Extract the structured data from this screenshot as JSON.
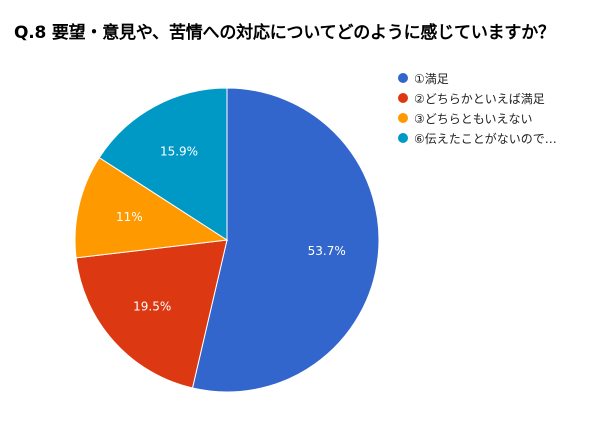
{
  "chart_data": {
    "type": "pie",
    "title": "Q.8 要望・意見や、苦情への対応についてどのように感じていますか？",
    "slices": [
      {
        "label": "①満足",
        "value": 53.7,
        "display": "53.7%",
        "color": "#3366cc"
      },
      {
        "label": "②どちらかといえば満足",
        "value": 19.5,
        "display": "19.5%",
        "color": "#dc3912"
      },
      {
        "label": "③どちらともいえない",
        "value": 11,
        "display": "11%",
        "color": "#ff9900"
      },
      {
        "label": "⑥伝えたことがないので…",
        "value": 15.9,
        "display": "15.9%",
        "color": "#0099c6"
      }
    ],
    "legend_position": "right",
    "start": "12 o'clock",
    "direction": "clockwise"
  }
}
